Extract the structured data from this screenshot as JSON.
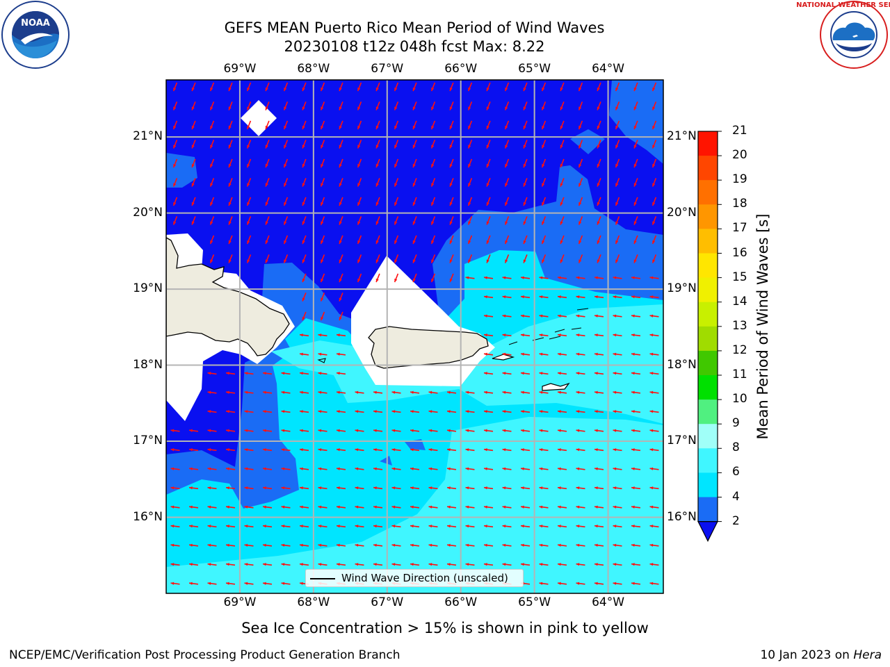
{
  "title_line1": "GEFS MEAN Puerto Rico Mean Period of Wind Waves",
  "title_line2": "20230108 t12z 048h fcst   Max: 8.22",
  "logos": {
    "noaa_text": "NOAA",
    "noaa_ring": "NATIONAL OCEANIC AND ATMOSPHERIC ADMINISTRATION · U.S. DEPARTMENT OF COMMERCE",
    "nws_ring": "NATIONAL WEATHER SERVICE"
  },
  "lon_labels": [
    "69°W",
    "68°W",
    "67°W",
    "66°W",
    "65°W",
    "64°W"
  ],
  "lat_labels": [
    "21°N",
    "20°N",
    "19°N",
    "18°N",
    "17°N",
    "16°N"
  ],
  "legend_label": "Wind Wave Direction (unscaled)",
  "colorbar": {
    "label": "Mean Period of Wind Waves [s]",
    "ticks": [
      "2",
      "4",
      "6",
      "8",
      "9",
      "10",
      "11",
      "12",
      "13",
      "14",
      "15",
      "16",
      "17",
      "18",
      "19",
      "20",
      "21"
    ],
    "colors": [
      "#1a6cf5",
      "#00e5ff",
      "#40f6ff",
      "#a0fff8",
      "#50f080",
      "#00e000",
      "#40c800",
      "#a0dc00",
      "#c8f000",
      "#f0f000",
      "#ffe600",
      "#ffbe00",
      "#ff9600",
      "#ff7000",
      "#ff4600",
      "#ff1400"
    ],
    "under_color": "#0a10f0"
  },
  "chart_data": {
    "type": "heatmap",
    "title": "GEFS MEAN Puerto Rico Mean Period of Wind Waves",
    "subtitle": "20230108 t12z 048h fcst   Max: 8.22",
    "variable": "Mean Period of Wind Waves [s]",
    "max": 8.22,
    "lon_ticks": [
      -69,
      -68,
      -67,
      -66,
      -65,
      -64
    ],
    "lat_ticks": [
      21,
      20,
      19,
      18,
      17,
      16
    ],
    "lon_range": [
      -70,
      -63.25
    ],
    "lat_range": [
      15,
      21.75
    ],
    "levels": [
      2,
      4,
      6,
      8,
      9,
      10,
      11,
      12,
      13,
      14,
      15,
      16,
      17,
      18,
      19,
      20,
      21
    ],
    "grid": true
  },
  "note": "Sea Ice Concentration > 15% is shown in pink to yellow",
  "footer_left": "NCEP/EMC/Verification Post Processing Product Generation Branch",
  "footer_right_prefix": "10 Jan 2023 on ",
  "footer_right_host": "Hera"
}
